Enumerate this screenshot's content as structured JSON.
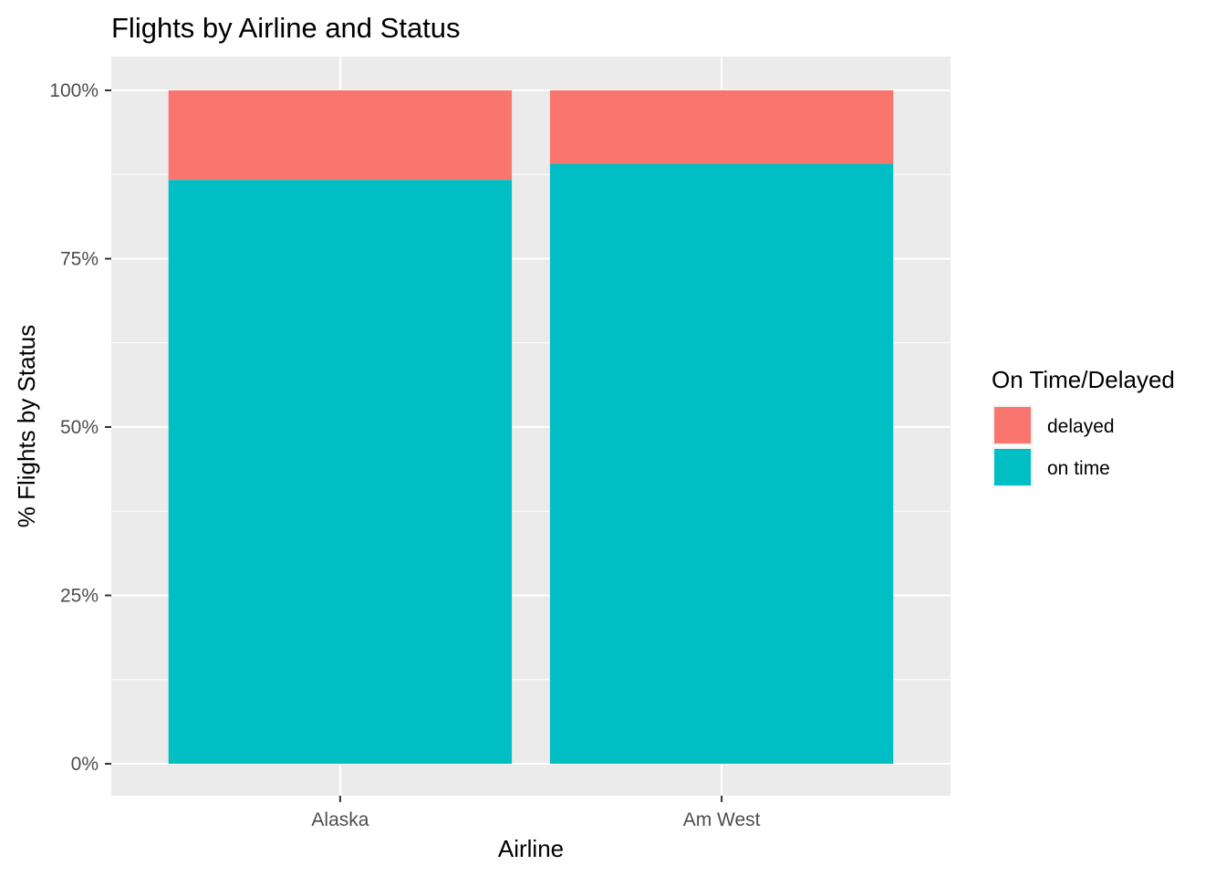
{
  "chart_data": {
    "type": "bar",
    "stacked": true,
    "title": "Flights by Airline and Status",
    "xlabel": "Airline",
    "ylabel": "% Flights by Status",
    "categories": [
      "Alaska",
      "Am West"
    ],
    "series": [
      {
        "name": "on time",
        "color": "#00BFC4",
        "values": [
          86.7,
          89.1
        ]
      },
      {
        "name": "delayed",
        "color": "#F8766D",
        "values": [
          13.3,
          10.9
        ]
      }
    ],
    "ylim": [
      0,
      100
    ],
    "yticks": [
      0,
      25,
      50,
      75,
      100
    ],
    "ytick_labels": [
      "0%",
      "25%",
      "50%",
      "75%",
      "100%"
    ],
    "grid": true,
    "panel_background": "#EBEBEB",
    "legend": {
      "title": "On Time/Delayed",
      "position": "right",
      "items": [
        {
          "label": "delayed",
          "color": "#F8766D"
        },
        {
          "label": "on time",
          "color": "#00BFC4"
        }
      ]
    }
  }
}
